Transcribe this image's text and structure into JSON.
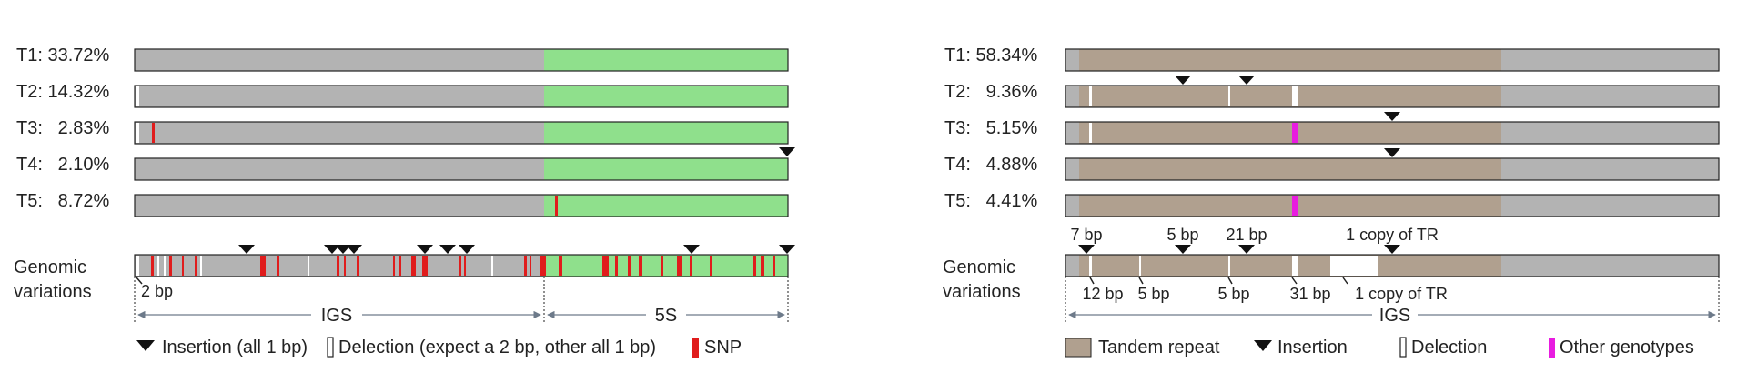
{
  "colors": {
    "igs": "#b3b3b3",
    "five_s": "#8fe08c",
    "tandem_repeat": "#b0a08f",
    "snp": "#e01c1c",
    "deletion": "#ffffff",
    "other_genotype": "#e81ce0",
    "insertion": "#111111",
    "outline": "#222222"
  },
  "left_panel": {
    "types": [
      {
        "label": "T1: 33.72%"
      },
      {
        "label": "T2: 14.32%"
      },
      {
        "label": "T3:   2.83%"
      },
      {
        "label": "T4:   2.10%"
      },
      {
        "label": "T5:   8.72%"
      }
    ],
    "genomic_label_line1": "Genomic",
    "genomic_label_line2": "variations",
    "annot_2bp": "2 bp",
    "region_igs": "IGS",
    "region_5s": "5S",
    "legend": {
      "insertion": "Insertion (all 1 bp)",
      "deletion": "Delection (expect a 2 bp, other all 1 bp)",
      "snp": "SNP"
    }
  },
  "right_panel": {
    "types": [
      {
        "label": "T1: 58.34%"
      },
      {
        "label": "T2:   9.36%"
      },
      {
        "label": "T3:   5.15%"
      },
      {
        "label": "T4:   4.88%"
      },
      {
        "label": "T5:   4.41%"
      }
    ],
    "genomic_label_line1": "Genomic",
    "genomic_label_line2": "variations",
    "annot_top": [
      "7 bp",
      "5 bp",
      "21 bp",
      "1 copy of TR"
    ],
    "annot_bottom": [
      "12 bp",
      "5 bp",
      "5 bp",
      "31 bp",
      "1 copy of TR"
    ],
    "region_igs": "IGS",
    "legend": {
      "tandem_repeat": "Tandem repeat",
      "insertion": "Insertion",
      "deletion": "Delection",
      "other_genotypes": "Other genotypes"
    }
  }
}
